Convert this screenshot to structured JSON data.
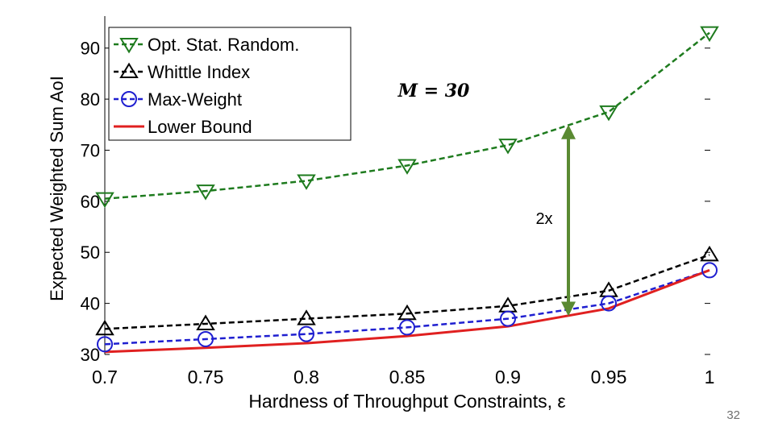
{
  "slide_number": "32",
  "chart_data": {
    "type": "line",
    "xlabel": "Hardness of Throughput Constraints, ε",
    "ylabel": "Expected Weighted Sum AoI",
    "xlim": [
      0.7,
      1.0
    ],
    "ylim": [
      30,
      95
    ],
    "x": [
      0.7,
      0.75,
      0.8,
      0.85,
      0.9,
      0.95,
      1.0
    ],
    "x_tick_labels": [
      "0.7",
      "0.75",
      "0.8",
      "0.85",
      "0.9",
      "0.95",
      "1"
    ],
    "y_ticks": [
      30,
      40,
      50,
      60,
      70,
      80,
      90
    ],
    "grid": false,
    "legend_position": "top-left",
    "series": [
      {
        "name": "Opt. Stat. Random.",
        "values": [
          60.5,
          62,
          64,
          67,
          71,
          77.5,
          93
        ],
        "color": "#1e7b1e",
        "marker": "triangle-down",
        "line": "dashed"
      },
      {
        "name": "Whittle Index",
        "values": [
          35,
          36,
          37,
          38,
          39.5,
          42.5,
          49.5
        ],
        "color": "#000000",
        "marker": "triangle-up",
        "line": "dashed"
      },
      {
        "name": "Max-Weight",
        "values": [
          32,
          33,
          34,
          35.3,
          37,
          40,
          46.5
        ],
        "color": "#1f1fd0",
        "marker": "circle",
        "line": "dashed"
      },
      {
        "name": "Lower Bound",
        "values": [
          30.5,
          31.3,
          32.2,
          33.6,
          35.5,
          39,
          46.5
        ],
        "color": "#e02020",
        "marker": "none",
        "line": "solid"
      }
    ],
    "annotations": [
      {
        "text": "M = 30",
        "x": 0.87,
        "y": 82
      },
      {
        "text": "2x",
        "x": 0.915,
        "y": 56,
        "arrow_x": 0.93,
        "arrow_from": 37.5,
        "arrow_to": 75,
        "color": "#5a8a32"
      }
    ]
  }
}
